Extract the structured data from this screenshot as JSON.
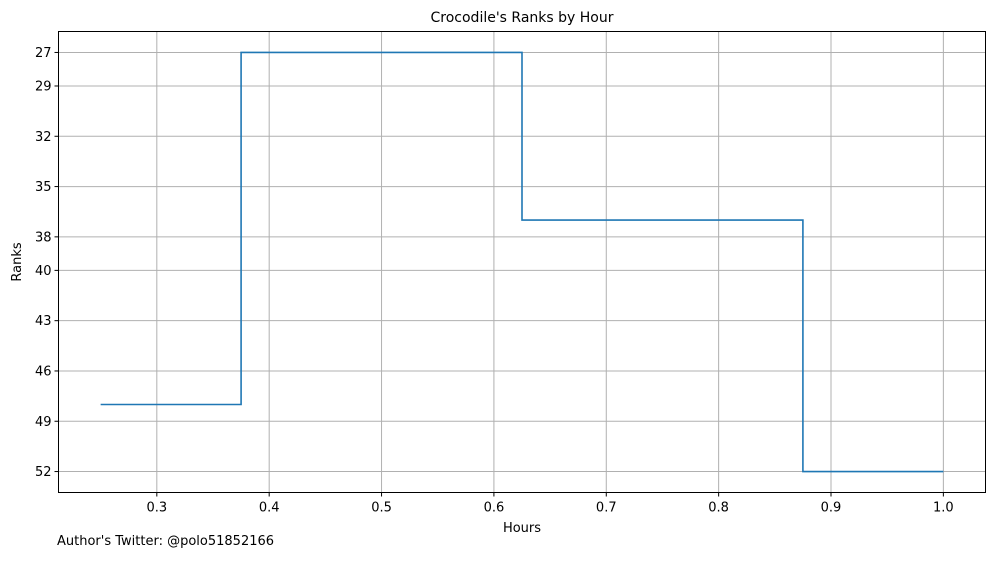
{
  "chart_data": {
    "type": "line",
    "drawstyle": "steps-post",
    "title": "Crocodile's Ranks by Hour",
    "xlabel": "Hours",
    "ylabel": "Ranks",
    "x": [
      0.25,
      0.375,
      0.625,
      0.875,
      1.0
    ],
    "y": [
      48,
      27,
      37,
      52,
      52
    ],
    "xlim": [
      0.2125,
      1.0375
    ],
    "ylim": [
      53.25,
      25.75
    ],
    "y_inverted": true,
    "xticks": [
      0.3,
      0.4,
      0.5,
      0.6,
      0.7,
      0.8,
      0.9,
      1.0
    ],
    "xtick_labels": [
      "0.3",
      "0.4",
      "0.5",
      "0.6",
      "0.7",
      "0.8",
      "0.9",
      "1.0"
    ],
    "yticks": [
      27,
      29,
      32,
      35,
      38,
      40,
      43,
      46,
      49,
      52
    ],
    "ytick_labels": [
      "27",
      "29",
      "32",
      "35",
      "38",
      "40",
      "43",
      "46",
      "49",
      "52"
    ],
    "grid": true,
    "line_color": "#1f77b4"
  },
  "footer": {
    "note": "Author's Twitter: @polo51852166"
  }
}
